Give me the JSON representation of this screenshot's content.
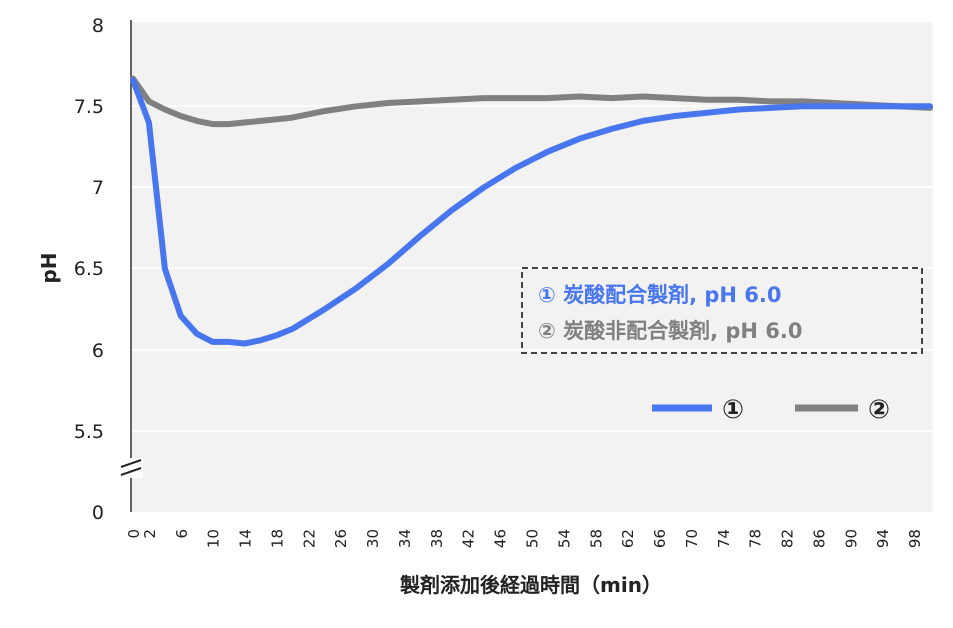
{
  "chart_data": {
    "type": "line",
    "ylabel": "pH",
    "xlabel": "製剤添加後経過時間（min）",
    "xlim": [
      0,
      100
    ],
    "x_ticks": [
      0,
      2,
      6,
      10,
      14,
      18,
      22,
      26,
      30,
      34,
      38,
      42,
      46,
      50,
      54,
      58,
      62,
      66,
      70,
      74,
      78,
      82,
      86,
      90,
      94,
      98
    ],
    "y_ticks": [
      "8",
      "7.5",
      "7",
      "6.5",
      "6",
      "5.5",
      "0"
    ],
    "y_axis_break": true,
    "colors": {
      "series1": "#4876ee",
      "series2": "#808080",
      "plot_bg": "#f2f2f2",
      "grid": "#ffffff"
    },
    "series": [
      {
        "name": "①",
        "x": [
          0,
          2,
          4,
          6,
          8,
          10,
          12,
          14,
          16,
          18,
          20,
          24,
          28,
          32,
          36,
          40,
          44,
          48,
          52,
          56,
          60,
          64,
          68,
          72,
          76,
          80,
          84,
          88,
          92,
          96,
          100
        ],
        "values": [
          7.66,
          7.4,
          6.5,
          6.21,
          6.1,
          6.05,
          6.05,
          6.04,
          6.06,
          6.09,
          6.13,
          6.25,
          6.38,
          6.53,
          6.7,
          6.86,
          7.0,
          7.12,
          7.22,
          7.3,
          7.36,
          7.41,
          7.44,
          7.46,
          7.48,
          7.49,
          7.5,
          7.5,
          7.5,
          7.5,
          7.5
        ]
      },
      {
        "name": "②",
        "x": [
          0,
          2,
          4,
          6,
          8,
          10,
          12,
          14,
          16,
          18,
          20,
          24,
          28,
          32,
          36,
          40,
          44,
          48,
          52,
          56,
          60,
          64,
          68,
          72,
          76,
          80,
          84,
          88,
          92,
          96,
          100
        ],
        "values": [
          7.67,
          7.53,
          7.48,
          7.44,
          7.41,
          7.39,
          7.39,
          7.4,
          7.41,
          7.42,
          7.43,
          7.47,
          7.5,
          7.52,
          7.53,
          7.54,
          7.55,
          7.55,
          7.55,
          7.56,
          7.55,
          7.56,
          7.55,
          7.54,
          7.54,
          7.53,
          7.53,
          7.52,
          7.51,
          7.5,
          7.49
        ]
      }
    ],
    "annotation_lines": [
      {
        "text": "① 炭酸配合製剤, pH 6.0",
        "color": "#4876ee"
      },
      {
        "text": "② 炭酸非配合製剤, pH 6.0",
        "color": "#808080"
      }
    ],
    "legend": {
      "position": "bottom-right",
      "labels": [
        "①",
        "②"
      ]
    }
  }
}
